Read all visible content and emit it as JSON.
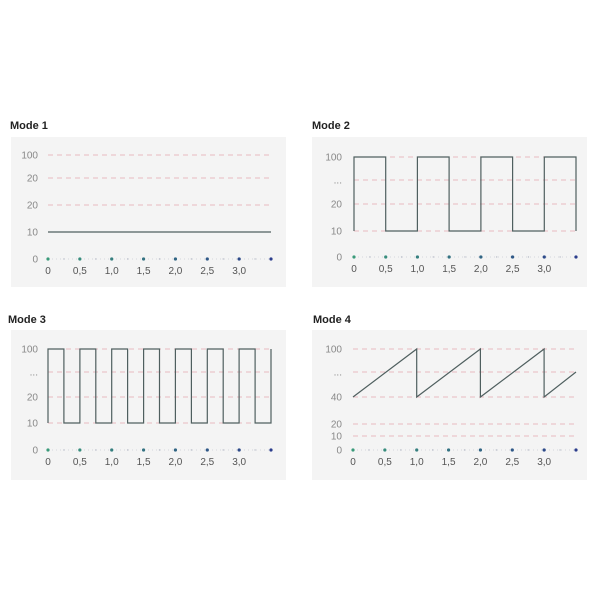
{
  "colors": {
    "panel_bg": "#f4f4f4",
    "grid_dash": "#e2a6ae",
    "signal_line": "#4f5f5f",
    "axis_dot_start": "#3a9a7a",
    "axis_dot_end": "#2b3d8c"
  },
  "chart_data": [
    {
      "type": "line",
      "title": "Mode 1",
      "y_tick_labels": [
        "100",
        "20",
        "20",
        "10",
        "0"
      ],
      "x_tick_labels": [
        "0",
        "0,5",
        "1,0",
        "1,5",
        "2,0",
        "2,5",
        "3,0"
      ],
      "x_ticks": [
        0,
        0.5,
        1.0,
        1.5,
        2.0,
        2.5,
        3.0
      ],
      "xlim": [
        0,
        3.5
      ],
      "grid": "dashed horizontal",
      "points": [
        [
          0,
          "10"
        ],
        [
          3.5,
          "10"
        ]
      ]
    },
    {
      "type": "line",
      "title": "Mode 2",
      "y_tick_labels": [
        "100",
        "...",
        "20",
        "10",
        "0"
      ],
      "x_tick_labels": [
        "0",
        "0,5",
        "1,0",
        "1,5",
        "2,0",
        "2,5",
        "3,0"
      ],
      "x_ticks": [
        0,
        0.5,
        1.0,
        1.5,
        2.0,
        2.5,
        3.0
      ],
      "xlim": [
        0,
        3.5
      ],
      "grid": "dashed horizontal",
      "points": [
        [
          0,
          "10"
        ],
        [
          0,
          "100"
        ],
        [
          0.5,
          "100"
        ],
        [
          0.5,
          "10"
        ],
        [
          1,
          "10"
        ],
        [
          1,
          "100"
        ],
        [
          1.5,
          "100"
        ],
        [
          1.5,
          "10"
        ],
        [
          2,
          "10"
        ],
        [
          2,
          "100"
        ],
        [
          2.5,
          "100"
        ],
        [
          2.5,
          "10"
        ],
        [
          3,
          "10"
        ],
        [
          3,
          "100"
        ],
        [
          3.5,
          "100"
        ],
        [
          3.5,
          "10"
        ]
      ]
    },
    {
      "type": "line",
      "title": "Mode 3",
      "y_tick_labels": [
        "100",
        "...",
        "20",
        "10",
        "0"
      ],
      "x_tick_labels": [
        "0",
        "0,5",
        "1,0",
        "1,5",
        "2,0",
        "2,5",
        "3,0"
      ],
      "x_ticks": [
        0,
        0.5,
        1.0,
        1.5,
        2.0,
        2.5,
        3.0
      ],
      "xlim": [
        0,
        3.5
      ],
      "grid": "dashed horizontal",
      "points": [
        [
          0,
          "10"
        ],
        [
          0,
          "100"
        ],
        [
          0.25,
          "100"
        ],
        [
          0.25,
          "10"
        ],
        [
          0.5,
          "10"
        ],
        [
          0.5,
          "100"
        ],
        [
          0.75,
          "100"
        ],
        [
          0.75,
          "10"
        ],
        [
          1,
          "10"
        ],
        [
          1,
          "100"
        ],
        [
          1.25,
          "100"
        ],
        [
          1.25,
          "10"
        ],
        [
          1.5,
          "10"
        ],
        [
          1.5,
          "100"
        ],
        [
          1.75,
          "100"
        ],
        [
          1.75,
          "10"
        ],
        [
          2,
          "10"
        ],
        [
          2,
          "100"
        ],
        [
          2.25,
          "100"
        ],
        [
          2.25,
          "10"
        ],
        [
          2.5,
          "10"
        ],
        [
          2.5,
          "100"
        ],
        [
          2.75,
          "100"
        ],
        [
          2.75,
          "10"
        ],
        [
          3,
          "10"
        ],
        [
          3,
          "100"
        ],
        [
          3.25,
          "100"
        ],
        [
          3.25,
          "10"
        ],
        [
          3.5,
          "10"
        ],
        [
          3.5,
          "100"
        ]
      ]
    },
    {
      "type": "line",
      "title": "Mode 4",
      "y_tick_labels": [
        "100",
        "...",
        "40",
        "20",
        "10",
        "0"
      ],
      "x_tick_labels": [
        "0",
        "0,5",
        "1,0",
        "1,5",
        "2,0",
        "2,5",
        "3,0"
      ],
      "x_ticks": [
        0,
        0.5,
        1.0,
        1.5,
        2.0,
        2.5,
        3.0
      ],
      "xlim": [
        0,
        3.5
      ],
      "grid": "dashed horizontal",
      "points": [
        [
          0,
          "40"
        ],
        [
          1,
          "100"
        ],
        [
          1,
          "40"
        ],
        [
          2,
          "100"
        ],
        [
          2,
          "40"
        ],
        [
          3,
          "100"
        ],
        [
          3,
          "40"
        ],
        [
          3.5,
          "..."
        ]
      ]
    }
  ]
}
